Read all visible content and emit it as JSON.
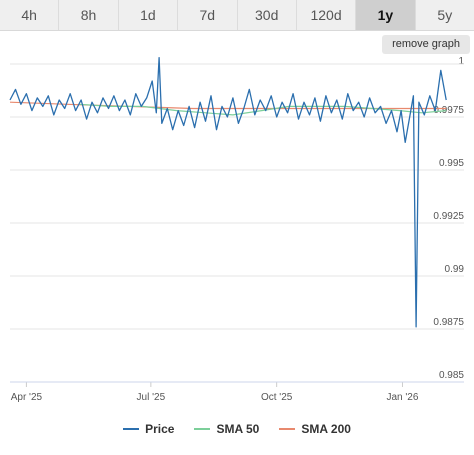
{
  "tabs": [
    {
      "label": "4h",
      "active": false
    },
    {
      "label": "8h",
      "active": false
    },
    {
      "label": "1d",
      "active": false
    },
    {
      "label": "7d",
      "active": false
    },
    {
      "label": "30d",
      "active": false
    },
    {
      "label": "120d",
      "active": false
    },
    {
      "label": "1y",
      "active": true
    },
    {
      "label": "5y",
      "active": false
    }
  ],
  "remove_graph_label": "remove graph",
  "colors": {
    "price": "#2b6fae",
    "sma50": "#7ccf9a",
    "sma200": "#e8896e",
    "grid": "#e6e6e6"
  },
  "chart_data": {
    "type": "line",
    "title": "",
    "xlabel": "",
    "ylabel": "",
    "x_ticks": [
      "Apr '25",
      "Jul '25",
      "Oct '25",
      "Jan '26"
    ],
    "y_ticks": [
      "1",
      "0.9975",
      "0.995",
      "0.9925",
      "0.99",
      "0.9875",
      "0.985"
    ],
    "ylim": [
      0.985,
      1.0
    ],
    "xlim": [
      "2025-03-20",
      "2026-02-15"
    ],
    "grid": true,
    "legend_position": "bottom",
    "series": [
      {
        "name": "Price",
        "color": "#2b6fae",
        "points": [
          [
            "2025-03-20",
            0.9983
          ],
          [
            "2025-03-24",
            0.9988
          ],
          [
            "2025-03-28",
            0.9981
          ],
          [
            "2025-04-01",
            0.9986
          ],
          [
            "2025-04-05",
            0.9978
          ],
          [
            "2025-04-09",
            0.9984
          ],
          [
            "2025-04-13",
            0.998
          ],
          [
            "2025-04-17",
            0.9985
          ],
          [
            "2025-04-21",
            0.9976
          ],
          [
            "2025-04-25",
            0.9983
          ],
          [
            "2025-04-29",
            0.9979
          ],
          [
            "2025-05-03",
            0.9986
          ],
          [
            "2025-05-07",
            0.9978
          ],
          [
            "2025-05-11",
            0.9983
          ],
          [
            "2025-05-15",
            0.9974
          ],
          [
            "2025-05-19",
            0.9982
          ],
          [
            "2025-05-23",
            0.9977
          ],
          [
            "2025-05-27",
            0.9984
          ],
          [
            "2025-05-31",
            0.9979
          ],
          [
            "2025-06-04",
            0.9985
          ],
          [
            "2025-06-08",
            0.9978
          ],
          [
            "2025-06-12",
            0.9983
          ],
          [
            "2025-06-16",
            0.9976
          ],
          [
            "2025-06-20",
            0.9986
          ],
          [
            "2025-06-24",
            0.998
          ],
          [
            "2025-06-28",
            0.9984
          ],
          [
            "2025-07-02",
            0.9992
          ],
          [
            "2025-07-05",
            0.9977
          ],
          [
            "2025-07-07",
            1.0003
          ],
          [
            "2025-07-09",
            0.9972
          ],
          [
            "2025-07-13",
            0.9979
          ],
          [
            "2025-07-17",
            0.9969
          ],
          [
            "2025-07-21",
            0.9978
          ],
          [
            "2025-07-25",
            0.9971
          ],
          [
            "2025-07-29",
            0.998
          ],
          [
            "2025-08-02",
            0.997
          ],
          [
            "2025-08-06",
            0.9982
          ],
          [
            "2025-08-10",
            0.9973
          ],
          [
            "2025-08-14",
            0.9985
          ],
          [
            "2025-08-18",
            0.9969
          ],
          [
            "2025-08-22",
            0.998
          ],
          [
            "2025-08-26",
            0.9975
          ],
          [
            "2025-08-30",
            0.9984
          ],
          [
            "2025-09-03",
            0.9972
          ],
          [
            "2025-09-07",
            0.9979
          ],
          [
            "2025-09-11",
            0.9988
          ],
          [
            "2025-09-15",
            0.9976
          ],
          [
            "2025-09-19",
            0.9983
          ],
          [
            "2025-09-23",
            0.9978
          ],
          [
            "2025-09-27",
            0.9985
          ],
          [
            "2025-10-01",
            0.9975
          ],
          [
            "2025-10-05",
            0.9982
          ],
          [
            "2025-10-09",
            0.9977
          ],
          [
            "2025-10-13",
            0.9986
          ],
          [
            "2025-10-17",
            0.9974
          ],
          [
            "2025-10-21",
            0.9982
          ],
          [
            "2025-10-25",
            0.9976
          ],
          [
            "2025-10-29",
            0.9984
          ],
          [
            "2025-11-02",
            0.9973
          ],
          [
            "2025-11-06",
            0.9985
          ],
          [
            "2025-11-10",
            0.9977
          ],
          [
            "2025-11-14",
            0.9983
          ],
          [
            "2025-11-18",
            0.9974
          ],
          [
            "2025-11-22",
            0.9986
          ],
          [
            "2025-11-26",
            0.9978
          ],
          [
            "2025-11-30",
            0.9982
          ],
          [
            "2025-12-04",
            0.9975
          ],
          [
            "2025-12-08",
            0.9984
          ],
          [
            "2025-12-12",
            0.9977
          ],
          [
            "2025-12-16",
            0.998
          ],
          [
            "2025-12-20",
            0.9972
          ],
          [
            "2025-12-24",
            0.9978
          ],
          [
            "2025-12-28",
            0.9968
          ],
          [
            "2025-12-31",
            0.9978
          ],
          [
            "2026-01-03",
            0.9963
          ],
          [
            "2026-01-06",
            0.9974
          ],
          [
            "2026-01-09",
            0.9985
          ],
          [
            "2026-01-11",
            0.9876
          ],
          [
            "2026-01-13",
            0.9982
          ],
          [
            "2026-01-17",
            0.9976
          ],
          [
            "2026-01-21",
            0.9985
          ],
          [
            "2026-01-25",
            0.9978
          ],
          [
            "2026-01-29",
            0.9997
          ],
          [
            "2026-02-02",
            0.9983
          ]
        ]
      },
      {
        "name": "SMA 50",
        "color": "#7ccf9a",
        "points": [
          [
            "2025-05-10",
            0.9981
          ],
          [
            "2025-06-01",
            0.998
          ],
          [
            "2025-06-25",
            0.998
          ],
          [
            "2025-07-20",
            0.9978
          ],
          [
            "2025-08-10",
            0.9977
          ],
          [
            "2025-08-30",
            0.9976
          ],
          [
            "2025-09-20",
            0.9978
          ],
          [
            "2025-10-10",
            0.998
          ],
          [
            "2025-10-30",
            0.998
          ],
          [
            "2025-11-20",
            0.998
          ],
          [
            "2025-12-10",
            0.9979
          ],
          [
            "2025-12-30",
            0.9978
          ],
          [
            "2026-01-15",
            0.9977
          ],
          [
            "2026-02-02",
            0.9978
          ]
        ]
      },
      {
        "name": "SMA 200",
        "color": "#e8896e",
        "points": [
          [
            "2025-03-20",
            0.9982
          ],
          [
            "2025-05-01",
            0.9981
          ],
          [
            "2025-06-15",
            0.998
          ],
          [
            "2025-08-01",
            0.9979
          ],
          [
            "2025-09-15",
            0.9979
          ],
          [
            "2025-11-01",
            0.9979
          ],
          [
            "2025-12-15",
            0.9979
          ],
          [
            "2026-02-02",
            0.9979
          ]
        ]
      }
    ]
  }
}
